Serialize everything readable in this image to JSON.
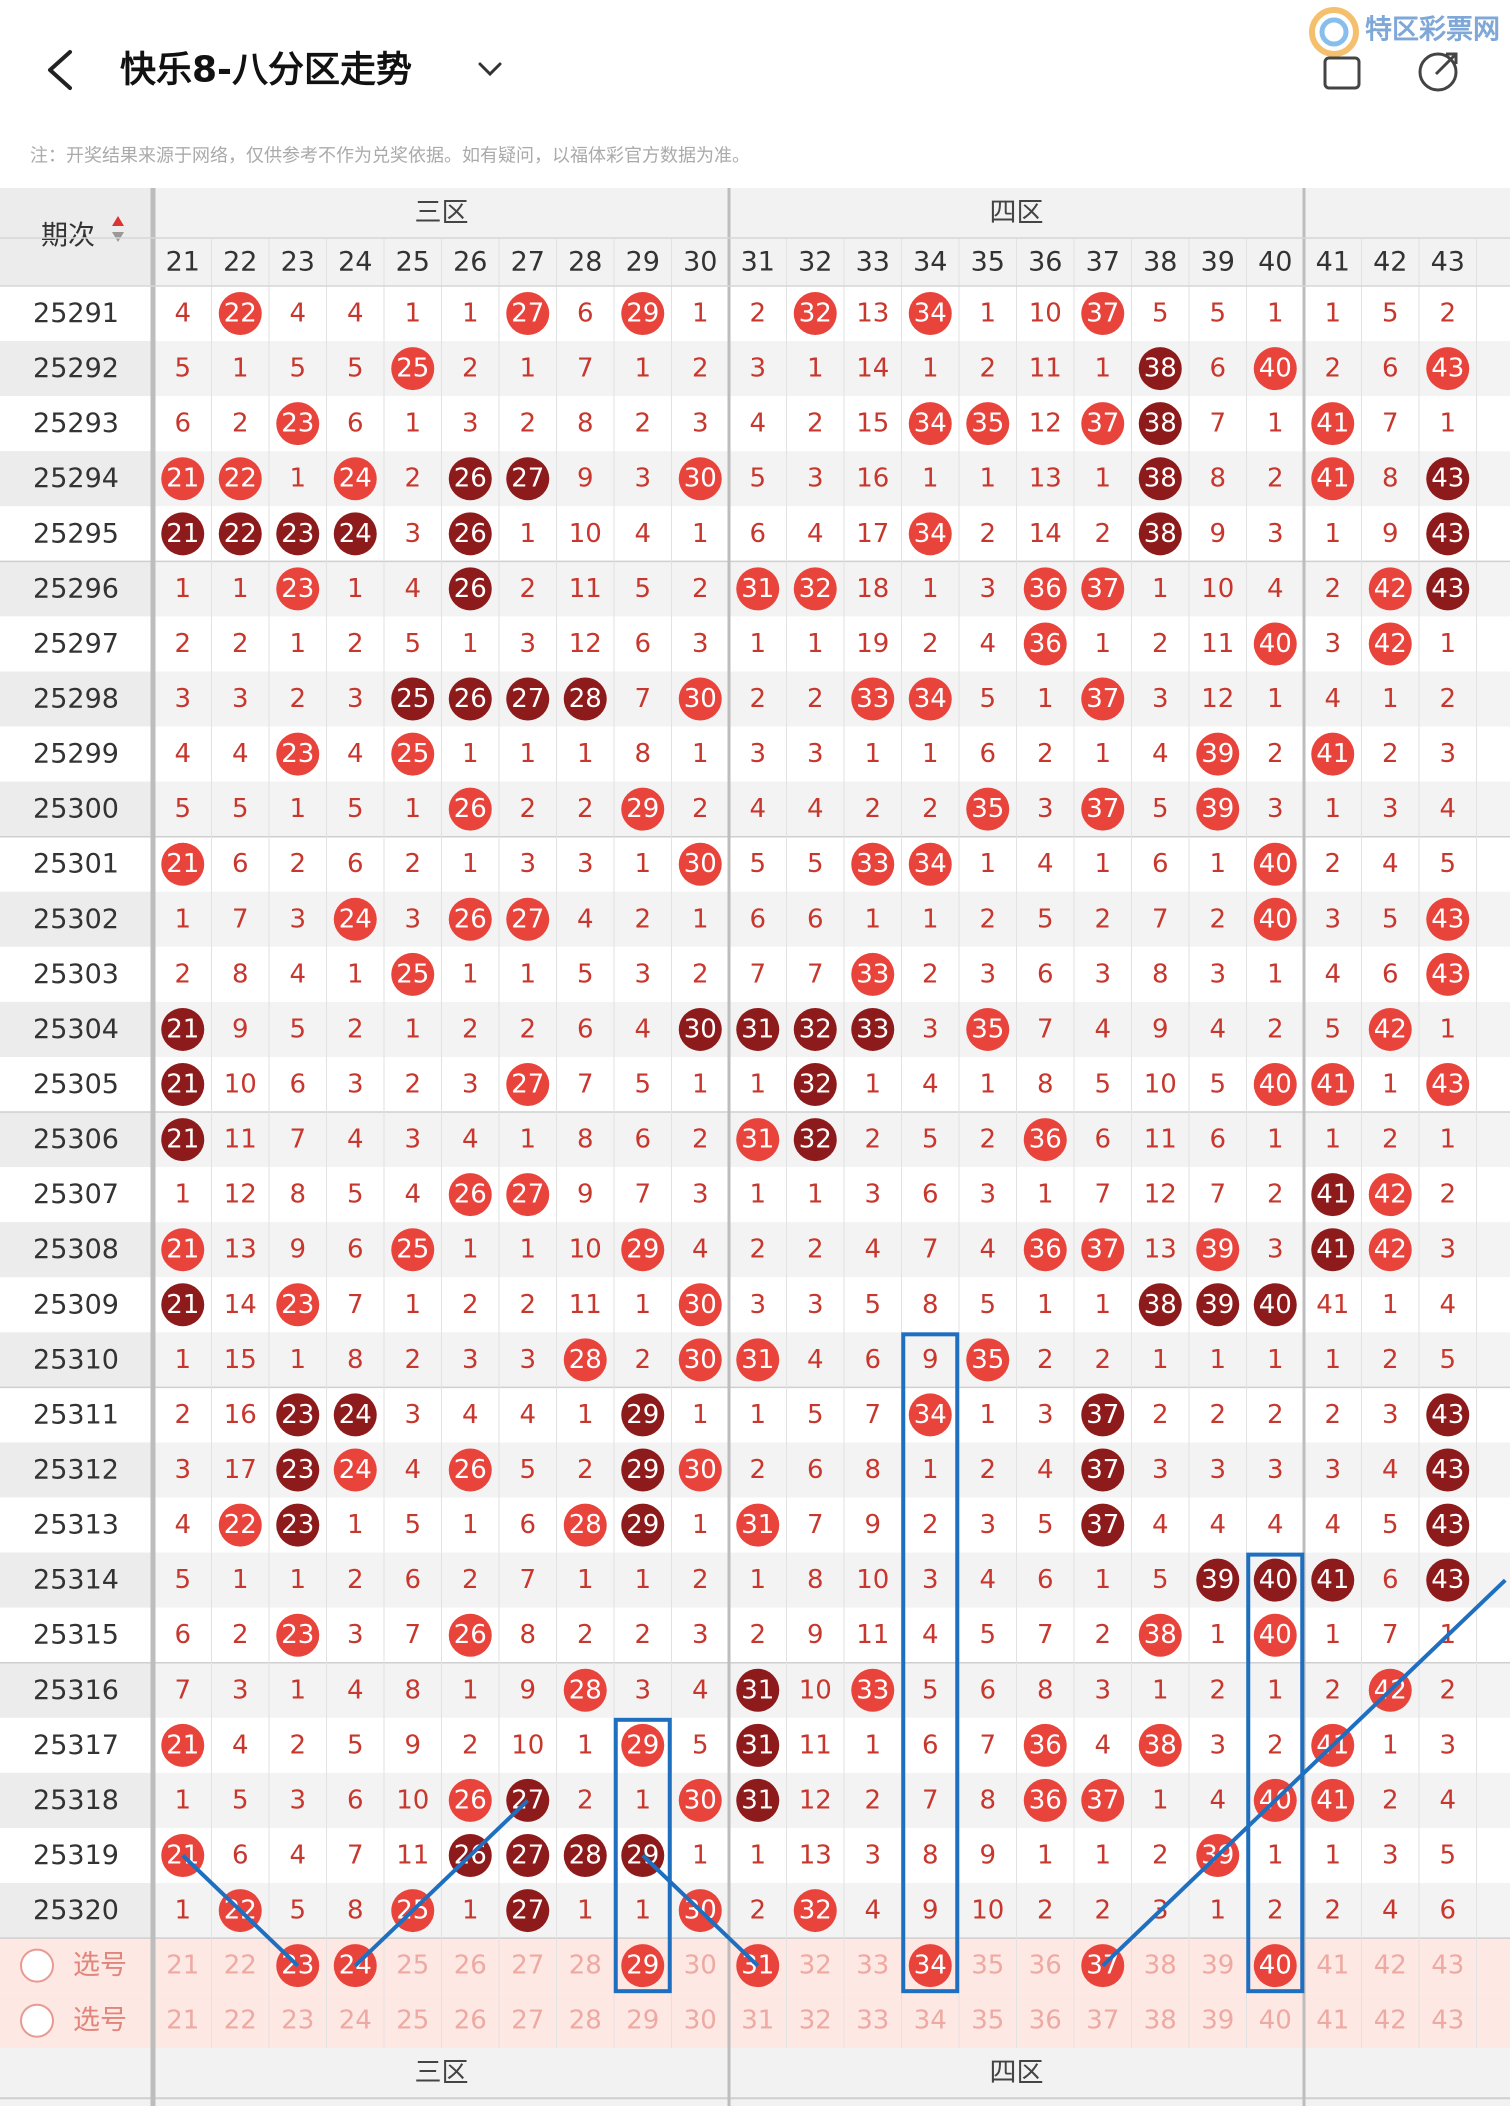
{
  "header": {
    "title": "快乐8-八分区走势",
    "watermark": "特区彩票网",
    "note": "注：开奖结果来源于网络，仅供参考不作为兑奖依据。如有疑问，以福体彩官方数据为准。"
  },
  "table": {
    "issue_header": "期次",
    "zones": [
      {
        "name": "三区",
        "columns": [
          21,
          22,
          23,
          24,
          25,
          26,
          27,
          28,
          29,
          30
        ]
      },
      {
        "name": "四区",
        "columns": [
          31,
          32,
          33,
          34,
          35,
          36,
          37,
          38,
          39,
          40
        ]
      }
    ],
    "other_columns": [
      41,
      42,
      43
    ],
    "rows": [
      {
        "issue": "25291",
        "values": [
          4,
          22,
          4,
          4,
          1,
          1,
          27,
          6,
          29,
          1,
          2,
          32,
          13,
          34,
          1,
          10,
          37,
          5,
          5,
          1,
          1,
          5,
          2
        ],
        "kinds": "nrnnnnrnrnnrnrnnrnnnnnn"
      },
      {
        "issue": "25292",
        "values": [
          5,
          1,
          5,
          5,
          25,
          2,
          1,
          7,
          1,
          2,
          3,
          1,
          14,
          1,
          2,
          11,
          1,
          38,
          6,
          40,
          2,
          6,
          43
        ],
        "kinds": "nnnnrnnnnnnnnnnnndnrnnr"
      },
      {
        "issue": "25293",
        "values": [
          6,
          2,
          23,
          6,
          1,
          3,
          2,
          8,
          2,
          3,
          4,
          2,
          15,
          34,
          35,
          12,
          37,
          38,
          7,
          1,
          41,
          7,
          1
        ],
        "kinds": "nnrnnnnnnnnnnrrnrdnnrnn"
      },
      {
        "issue": "25294",
        "values": [
          21,
          22,
          1,
          24,
          2,
          26,
          27,
          9,
          3,
          30,
          5,
          3,
          16,
          1,
          1,
          13,
          1,
          38,
          8,
          2,
          41,
          8,
          43
        ],
        "kinds": "rrnrnddnnrnnnnnnndnnrnd"
      },
      {
        "issue": "25295",
        "values": [
          21,
          22,
          23,
          24,
          3,
          26,
          1,
          10,
          4,
          1,
          6,
          4,
          17,
          34,
          2,
          14,
          2,
          38,
          9,
          3,
          1,
          9,
          43
        ],
        "kinds": "ddddndnnnnnnnrnnndnnnnd"
      },
      {
        "issue": "25296",
        "values": [
          1,
          1,
          23,
          1,
          4,
          26,
          2,
          11,
          5,
          2,
          31,
          32,
          18,
          1,
          3,
          36,
          37,
          1,
          10,
          4,
          2,
          42,
          43
        ],
        "kinds": "nnrnndnnnnrrnnnrrnnnnrd"
      },
      {
        "issue": "25297",
        "values": [
          2,
          2,
          1,
          2,
          5,
          1,
          3,
          12,
          6,
          3,
          1,
          1,
          19,
          2,
          4,
          36,
          1,
          2,
          11,
          40,
          3,
          42,
          1
        ],
        "kinds": "nnnnnnnnnnnnnnnrnnnrnrn"
      },
      {
        "issue": "25298",
        "values": [
          3,
          3,
          2,
          3,
          25,
          26,
          27,
          28,
          7,
          30,
          2,
          2,
          33,
          34,
          5,
          1,
          37,
          3,
          12,
          1,
          4,
          1,
          2
        ],
        "kinds": "nnnnddddnrnnrrnnrnnnnnn"
      },
      {
        "issue": "25299",
        "values": [
          4,
          4,
          23,
          4,
          25,
          1,
          1,
          1,
          8,
          1,
          3,
          3,
          1,
          1,
          6,
          2,
          1,
          4,
          39,
          2,
          41,
          2,
          3
        ],
        "kinds": "nnrnrnnnnnnnnnnnnnrnrnn"
      },
      {
        "issue": "25300",
        "values": [
          5,
          5,
          1,
          5,
          1,
          26,
          2,
          2,
          29,
          2,
          4,
          4,
          2,
          2,
          35,
          3,
          37,
          5,
          39,
          3,
          1,
          3,
          4
        ],
        "kinds": "nnnnnrnnrnnnnnrnrnrnnnn"
      },
      {
        "issue": "25301",
        "values": [
          21,
          6,
          2,
          6,
          2,
          1,
          3,
          3,
          1,
          30,
          5,
          5,
          33,
          34,
          1,
          4,
          1,
          6,
          1,
          40,
          2,
          4,
          5
        ],
        "kinds": "rnnnnnnnnrnnrrnnnnnrnnn"
      },
      {
        "issue": "25302",
        "values": [
          1,
          7,
          3,
          24,
          3,
          26,
          27,
          4,
          2,
          1,
          6,
          6,
          1,
          1,
          2,
          5,
          2,
          7,
          2,
          40,
          3,
          5,
          43
        ],
        "kinds": "nnnrnrrnnnnnnnnnnnnrnnr"
      },
      {
        "issue": "25303",
        "values": [
          2,
          8,
          4,
          1,
          25,
          1,
          1,
          5,
          3,
          2,
          7,
          7,
          33,
          2,
          3,
          6,
          3,
          8,
          3,
          1,
          4,
          6,
          43
        ],
        "kinds": "nnnnrnnnnnnnrnnnnnnnnnr"
      },
      {
        "issue": "25304",
        "values": [
          21,
          9,
          5,
          2,
          1,
          2,
          2,
          6,
          4,
          30,
          31,
          32,
          33,
          3,
          35,
          7,
          4,
          9,
          4,
          2,
          5,
          42,
          1
        ],
        "kinds": "dnnnnnnnnddddnrnnnnnnrn"
      },
      {
        "issue": "25305",
        "values": [
          21,
          10,
          6,
          3,
          2,
          3,
          27,
          7,
          5,
          1,
          1,
          32,
          1,
          4,
          1,
          8,
          5,
          10,
          5,
          40,
          41,
          1,
          43
        ],
        "kinds": "dnnnnnrnnnndnnnnnnnrrnr"
      },
      {
        "issue": "25306",
        "values": [
          21,
          11,
          7,
          4,
          3,
          4,
          1,
          8,
          6,
          2,
          31,
          32,
          2,
          5,
          2,
          36,
          6,
          11,
          6,
          1,
          1,
          2,
          1
        ],
        "kinds": "dnnnnnnnnnrdnnnrnnnnnnn"
      },
      {
        "issue": "25307",
        "values": [
          1,
          12,
          8,
          5,
          4,
          26,
          27,
          9,
          7,
          3,
          1,
          1,
          3,
          6,
          3,
          1,
          7,
          12,
          7,
          2,
          41,
          42,
          2
        ],
        "kinds": "nnnnnrrnnnnnnnnnnnnndrn"
      },
      {
        "issue": "25308",
        "values": [
          21,
          13,
          9,
          6,
          25,
          1,
          1,
          10,
          29,
          4,
          2,
          2,
          4,
          7,
          4,
          36,
          37,
          13,
          39,
          3,
          41,
          42,
          3
        ],
        "kinds": "rnnnrnnnrnnnnnnrrnrndrn"
      },
      {
        "issue": "25309",
        "values": [
          21,
          14,
          23,
          7,
          1,
          2,
          2,
          11,
          1,
          30,
          3,
          3,
          5,
          8,
          5,
          1,
          1,
          38,
          39,
          40,
          41,
          1,
          4
        ],
        "kinds": "dnrnnnnnnrnnnnnnndddnnn"
      },
      {
        "issue": "25310",
        "values": [
          1,
          15,
          1,
          8,
          2,
          3,
          3,
          28,
          2,
          30,
          31,
          4,
          6,
          9,
          35,
          2,
          2,
          1,
          1,
          1,
          1,
          2,
          5
        ],
        "kinds": "nnnnnnnrnrrnnnrnnnnnnnn"
      },
      {
        "issue": "25311",
        "values": [
          2,
          16,
          23,
          24,
          3,
          4,
          4,
          1,
          29,
          1,
          1,
          5,
          7,
          34,
          1,
          3,
          37,
          2,
          2,
          2,
          2,
          3,
          43
        ],
        "kinds": "nnddnnnndnnnnrnndnnnnnd"
      },
      {
        "issue": "25312",
        "values": [
          3,
          17,
          23,
          24,
          4,
          26,
          5,
          2,
          29,
          30,
          2,
          6,
          8,
          1,
          2,
          4,
          37,
          3,
          3,
          3,
          3,
          4,
          43
        ],
        "kinds": "nndrnrnndrnnnnnndnnnnnd"
      },
      {
        "issue": "25313",
        "values": [
          4,
          22,
          23,
          1,
          5,
          1,
          6,
          28,
          29,
          1,
          31,
          7,
          9,
          2,
          3,
          5,
          37,
          4,
          4,
          4,
          4,
          5,
          43
        ],
        "kinds": "nrdnnnnrdnrnnnnndnnnnnd"
      },
      {
        "issue": "25314",
        "values": [
          5,
          1,
          1,
          2,
          6,
          2,
          7,
          1,
          1,
          2,
          1,
          8,
          10,
          3,
          4,
          6,
          1,
          5,
          39,
          40,
          41,
          6,
          43
        ],
        "kinds": "nnnnnnnnnnnnnnnnnndddnd"
      },
      {
        "issue": "25315",
        "values": [
          6,
          2,
          23,
          3,
          7,
          26,
          8,
          2,
          2,
          3,
          2,
          9,
          11,
          4,
          5,
          7,
          2,
          38,
          1,
          40,
          1,
          7,
          1
        ],
        "kinds": "nnrnnrnnnnnnnnnnnrnrnnn"
      },
      {
        "issue": "25316",
        "values": [
          7,
          3,
          1,
          4,
          8,
          1,
          9,
          28,
          3,
          4,
          31,
          10,
          33,
          5,
          6,
          8,
          3,
          1,
          2,
          1,
          2,
          42,
          2
        ],
        "kinds": "nnnnnnnrnndnrnnnnnnnnrn"
      },
      {
        "issue": "25317",
        "values": [
          21,
          4,
          2,
          5,
          9,
          2,
          10,
          1,
          29,
          5,
          31,
          11,
          1,
          6,
          7,
          36,
          4,
          38,
          3,
          2,
          41,
          1,
          3
        ],
        "kinds": "rnnnnnnnrndnnnnrnrnnrnn"
      },
      {
        "issue": "25318",
        "values": [
          1,
          5,
          3,
          6,
          10,
          26,
          27,
          2,
          1,
          30,
          31,
          12,
          2,
          7,
          8,
          36,
          37,
          1,
          4,
          40,
          41,
          2,
          4
        ],
        "kinds": "nnnnnrdnnrdnnnnrrnnrrnn"
      },
      {
        "issue": "25319",
        "values": [
          21,
          6,
          4,
          7,
          11,
          26,
          27,
          28,
          29,
          1,
          1,
          13,
          3,
          8,
          9,
          1,
          1,
          2,
          39,
          1,
          1,
          3,
          5
        ],
        "kinds": "rnnnnddddnnnnnnnnnrnnnn"
      },
      {
        "issue": "25320",
        "values": [
          1,
          22,
          5,
          8,
          25,
          1,
          27,
          1,
          1,
          30,
          2,
          32,
          4,
          9,
          10,
          2,
          2,
          3,
          1,
          2,
          2,
          4,
          6
        ],
        "kinds": "nrnnrndnnrnrnnnnnnnnnnn"
      }
    ],
    "select_rows": [
      {
        "label": "选号",
        "values": [
          21,
          22,
          23,
          24,
          25,
          26,
          27,
          28,
          29,
          30,
          31,
          32,
          33,
          34,
          35,
          36,
          37,
          38,
          39,
          40,
          41,
          42,
          43
        ],
        "kinds": "nnrrnnnnrnrnnrnnrnnrnnn"
      },
      {
        "label": "选号",
        "values": [
          21,
          22,
          23,
          24,
          25,
          26,
          27,
          28,
          29,
          30,
          31,
          32,
          33,
          34,
          35,
          36,
          37,
          38,
          39,
          40,
          41,
          42,
          43
        ],
        "kinds": "nnnnnnnnnnnnnnnnnnnnnnn"
      }
    ]
  }
}
